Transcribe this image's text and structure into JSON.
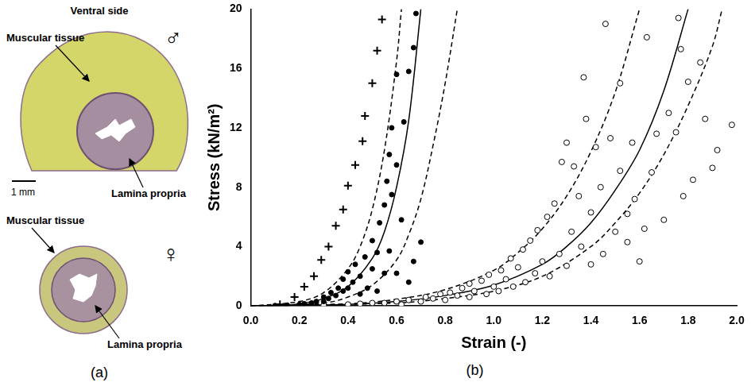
{
  "panel_labels": [
    "(a)",
    "(b)"
  ],
  "figure_a": {
    "title": "Ventral side",
    "male": {
      "symbol": "♂",
      "labels": [
        "Muscular tissue",
        "Lamina propria"
      ]
    },
    "scale_bar": "1 mm",
    "female": {
      "symbol": "♀",
      "labels": [
        "Muscular tissue",
        "Lamina propria"
      ]
    }
  },
  "chart_data": {
    "type": "scatter",
    "x_label": "Strain (-)",
    "y_label": "Stress (kN/m²)",
    "xlim": [
      0,
      2
    ],
    "ylim": [
      0,
      20
    ],
    "xticks": [
      {
        "value": 0,
        "label": "0.0"
      },
      0.2,
      0.4,
      0.6,
      0.8,
      {
        "value": 1,
        "label": "1.0"
      },
      1.2,
      1.4,
      1.6,
      1.8,
      {
        "value": 2,
        "label": "2.0"
      }
    ],
    "yticks": [
      0,
      4,
      8,
      12,
      16,
      20
    ],
    "grid": false,
    "series": [
      {
        "type": "scatter",
        "marker": "plus",
        "color": "#000000",
        "x": [
          0.12,
          0.18,
          0.22,
          0.26,
          0.29,
          0.32,
          0.35,
          0.38,
          0.4,
          0.43,
          0.46,
          0.47,
          0.5,
          0.52,
          0.54
        ],
        "values": [
          0.1,
          0.6,
          1.3,
          2.0,
          3.1,
          4.0,
          5.4,
          6.5,
          8.1,
          9.5,
          11.1,
          12.8,
          15.0,
          17.2,
          19.3
        ]
      },
      {
        "type": "scatter",
        "marker": "dot",
        "color": "#000000",
        "x": [
          0.1,
          0.15,
          0.2,
          0.22,
          0.25,
          0.27,
          0.3,
          0.3,
          0.32,
          0.33,
          0.35,
          0.36,
          0.38,
          0.38,
          0.4,
          0.4,
          0.42,
          0.43,
          0.45,
          0.45,
          0.47,
          0.48,
          0.5,
          0.5,
          0.52,
          0.52,
          0.53,
          0.55,
          0.55,
          0.56,
          0.57,
          0.57,
          0.58,
          0.58,
          0.6,
          0.6,
          0.6,
          0.62,
          0.63,
          0.65,
          0.65,
          0.67,
          0.67,
          0.68,
          0.7
        ],
        "values": [
          0.0,
          0.05,
          0.1,
          0.15,
          0.2,
          0.3,
          0.3,
          0.6,
          0.5,
          0.9,
          0.7,
          1.2,
          1.0,
          1.8,
          1.2,
          2.3,
          1.6,
          2.8,
          0.8,
          2.0,
          3.3,
          1.2,
          2.5,
          4.4,
          1.0,
          3.6,
          5.6,
          2.2,
          6.8,
          8.4,
          3.7,
          10.2,
          7.5,
          12.0,
          2.2,
          9.5,
          15.6,
          5.8,
          12.4,
          1.6,
          15.8,
          3.0,
          17.4,
          19.7,
          4.3
        ]
      },
      {
        "type": "line",
        "marker": "none",
        "line_style": "solid",
        "color": "#000000",
        "x": [
          0,
          0.1,
          0.2,
          0.3,
          0.4,
          0.5,
          0.55,
          0.6,
          0.65,
          0.7
        ],
        "values": [
          0,
          0,
          0.15,
          0.5,
          1.3,
          3.2,
          5.0,
          8.0,
          12.5,
          20
        ]
      },
      {
        "type": "line",
        "marker": "none",
        "line_style": "dashed",
        "color": "#000000",
        "x": [
          0,
          0.2,
          0.3,
          0.4,
          0.45,
          0.5,
          0.55,
          0.6,
          0.62
        ],
        "values": [
          0,
          0.3,
          0.9,
          2.5,
          4.0,
          6.5,
          10.5,
          16.5,
          20
        ]
      },
      {
        "type": "line",
        "marker": "none",
        "line_style": "dashed",
        "color": "#000000",
        "x": [
          0,
          0.3,
          0.4,
          0.5,
          0.6,
          0.65,
          0.7,
          0.75,
          0.8,
          0.85
        ],
        "values": [
          0,
          0.2,
          0.6,
          1.4,
          3.1,
          4.8,
          7.2,
          10.8,
          15.0,
          20
        ]
      },
      {
        "type": "scatter",
        "marker": "circle",
        "color": "#000000",
        "x": [
          0.1,
          0.2,
          0.3,
          0.4,
          0.45,
          0.5,
          0.55,
          0.6,
          0.62,
          0.65,
          0.7,
          0.72,
          0.75,
          0.78,
          0.8,
          0.82,
          0.85,
          0.87,
          0.9,
          0.9,
          0.92,
          0.95,
          0.97,
          0.98,
          1.0,
          1.02,
          1.03,
          1.05,
          1.07,
          1.08,
          1.1,
          1.12,
          1.13,
          1.15,
          1.17,
          1.18,
          1.2,
          1.22,
          1.23,
          1.25,
          1.27,
          1.28,
          1.3,
          1.3,
          1.32,
          1.33,
          1.35,
          1.36,
          1.37,
          1.38,
          1.4,
          1.4,
          1.42,
          1.44,
          1.45,
          1.46,
          1.48,
          1.5,
          1.52,
          1.52,
          1.55,
          1.55,
          1.57,
          1.58,
          1.6,
          1.62,
          1.63,
          1.65,
          1.67,
          1.7,
          1.72,
          1.75,
          1.76,
          1.77,
          1.78,
          1.8,
          1.82,
          1.85,
          1.87,
          1.9,
          1.92,
          1.98
        ],
        "values": [
          0,
          0,
          0.05,
          0.1,
          0.15,
          0.2,
          0.2,
          0.3,
          0.1,
          0.4,
          0.3,
          0.6,
          0.5,
          0.8,
          0.4,
          0.9,
          0.7,
          1.2,
          0.6,
          1.5,
          1.0,
          1.7,
          0.8,
          2.1,
          1.3,
          1.0,
          2.4,
          1.8,
          3.2,
          1.3,
          2.6,
          3.8,
          1.6,
          4.4,
          2.2,
          5.1,
          3.0,
          6.0,
          2.0,
          6.9,
          3.5,
          9.7,
          11.0,
          2.7,
          5.0,
          9.4,
          7.4,
          4.0,
          15.4,
          12.6,
          6.3,
          2.8,
          10.7,
          8.0,
          3.5,
          19.0,
          11.3,
          5.0,
          15.0,
          9.1,
          4.3,
          6.2,
          11.0,
          7.2,
          3.0,
          5.2,
          18.1,
          9.0,
          11.6,
          5.8,
          13.0,
          11.7,
          19.4,
          17.3,
          7.4,
          15.1,
          8.5,
          16.4,
          12.6,
          9.3,
          10.5,
          12.2
        ]
      },
      {
        "type": "line",
        "marker": "none",
        "line_style": "solid",
        "color": "#000000",
        "x": [
          0,
          0.4,
          0.6,
          0.8,
          1.0,
          1.2,
          1.3,
          1.4,
          1.5,
          1.6,
          1.7,
          1.8
        ],
        "values": [
          0,
          0.1,
          0.3,
          0.7,
          1.4,
          2.8,
          4.0,
          5.6,
          7.8,
          10.5,
          14.5,
          20
        ]
      },
      {
        "type": "line",
        "marker": "none",
        "line_style": "dashed",
        "color": "#000000",
        "x": [
          0,
          0.4,
          0.6,
          0.8,
          1.0,
          1.1,
          1.2,
          1.3,
          1.4,
          1.5,
          1.6
        ],
        "values": [
          0,
          0.15,
          0.45,
          1.1,
          2.4,
          3.6,
          5.2,
          7.4,
          10.4,
          14.4,
          20
        ]
      },
      {
        "type": "line",
        "marker": "none",
        "line_style": "dashed",
        "color": "#000000",
        "x": [
          0,
          0.6,
          0.8,
          1.0,
          1.2,
          1.4,
          1.5,
          1.6,
          1.7,
          1.8,
          1.9,
          1.94
        ],
        "values": [
          0,
          0.2,
          0.5,
          1.0,
          2.0,
          4.0,
          5.6,
          7.6,
          10.2,
          13.5,
          17.5,
          20
        ]
      }
    ]
  }
}
